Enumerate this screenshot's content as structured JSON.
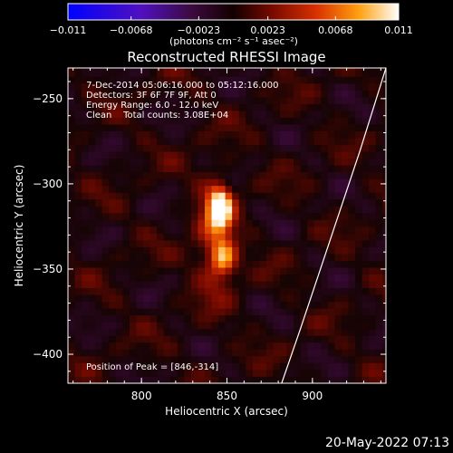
{
  "chart_data": {
    "type": "heatmap",
    "title": "Reconstructed RHESSI Image",
    "xlabel": "Heliocentric X (arcsec)",
    "ylabel": "Heliocentric Y (arcsec)",
    "xlim": [
      757,
      943
    ],
    "ylim": [
      -417,
      -232
    ],
    "x_ticks": [
      800,
      850,
      900
    ],
    "y_ticks": [
      -250,
      -300,
      -350,
      -400
    ],
    "x_tick_labels": [
      "800",
      "850",
      "900"
    ],
    "y_tick_labels": [
      "−250",
      "−300",
      "−350",
      "−400"
    ],
    "colorbar": {
      "range": [
        -0.011,
        0.011
      ],
      "ticks": [
        -0.011,
        -0.0068,
        -0.0023,
        0.0023,
        0.0068,
        0.011
      ],
      "tick_labels": [
        "−0.011",
        "−0.0068",
        "−0.0023",
        "0.0023",
        "0.0068",
        "0.011"
      ],
      "unit_label": "(photons cm⁻² s⁻¹ asec⁻²)",
      "colormap": "blue-purple-black-red-orange-yellow-white"
    },
    "annotations": [
      " 7-Dec-2014 05:06:16.000 to 05:12:16.000",
      "Detectors: 3F 6F 7F 9F, Att 0",
      "Energy Range: 6.0 - 12.0 keV",
      "Clean    Total counts: 3.08E+04"
    ],
    "peak_label": "Position of Peak = [846,-314]",
    "sources": [
      {
        "x": 846,
        "y": -314,
        "peak": 0.011,
        "sx": 4.5,
        "sy": 8
      },
      {
        "x": 848,
        "y": -343,
        "peak": 0.0072,
        "sx": 5,
        "sy": 7
      },
      {
        "x": 843,
        "y": -330,
        "peak": 0.0045,
        "sx": 8,
        "sy": 24
      }
    ],
    "limb_points": [
      [
        943,
        -232
      ],
      [
        928,
        -280
      ],
      [
        908,
        -340
      ],
      [
        893,
        -385
      ],
      [
        882,
        -417
      ]
    ],
    "pixel_size_arcsec": 4
  },
  "timestamp": "20-May-2022 07:13"
}
